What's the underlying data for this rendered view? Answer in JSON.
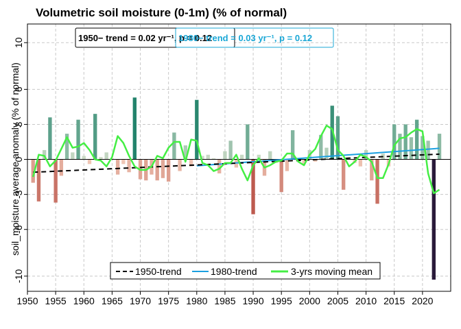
{
  "chart_data": {
    "type": "bar",
    "title": "Volumetric soil moisture (0-1m)  (% of normal)",
    "ylabel": "soil_moisture average anomaly (% of normal)",
    "xlabel": "",
    "xlim": [
      1950,
      2025
    ],
    "ylim": [
      -11.3,
      11.6
    ],
    "x_ticks": [
      1950,
      1955,
      1960,
      1965,
      1970,
      1975,
      1980,
      1985,
      1990,
      1995,
      2000,
      2005,
      2010,
      2015,
      2020
    ],
    "x_tick_labels": [
      "1950",
      "1955",
      "1960",
      "1965",
      "1970",
      "1975",
      "1980",
      "1985",
      "1990",
      "1995",
      "2000",
      "2005",
      "2010",
      "2015",
      "2020"
    ],
    "y_ticks": [
      -10,
      -6,
      -3,
      0,
      3,
      6,
      10
    ],
    "y_tick_labels": [
      "-10",
      "-6",
      "-3",
      "0",
      "3",
      "6",
      "10"
    ],
    "grid": true,
    "years": [
      1951,
      1952,
      1953,
      1954,
      1955,
      1956,
      1957,
      1958,
      1959,
      1960,
      1961,
      1962,
      1963,
      1964,
      1965,
      1966,
      1967,
      1968,
      1969,
      1970,
      1971,
      1972,
      1973,
      1974,
      1975,
      1976,
      1977,
      1978,
      1979,
      1980,
      1981,
      1982,
      1983,
      1984,
      1985,
      1986,
      1987,
      1988,
      1989,
      1990,
      1991,
      1992,
      1993,
      1994,
      1995,
      1996,
      1997,
      1998,
      1999,
      2000,
      2001,
      2002,
      2003,
      2004,
      2005,
      2006,
      2007,
      2008,
      2009,
      2010,
      2011,
      2012,
      2013,
      2014,
      2015,
      2016,
      2017,
      2018,
      2019,
      2020,
      2021,
      2022,
      2023
    ],
    "values": [
      -2.0,
      -3.6,
      0.8,
      3.6,
      -3.7,
      -1.4,
      2.2,
      0.6,
      3.4,
      0.3,
      -0.4,
      3.9,
      0.2,
      0.6,
      0.1,
      -1.3,
      -0.4,
      -1.1,
      5.3,
      -1.7,
      -1.8,
      -1.3,
      -1.8,
      -1.6,
      -1.9,
      2.3,
      -1.0,
      1.2,
      -0.6,
      5.1,
      0.3,
      0.4,
      0.1,
      -1.2,
      0.7,
      1.6,
      -0.7,
      0.4,
      3.0,
      -4.7,
      0.4,
      -1.4,
      0.7,
      -0.3,
      -2.8,
      -1.0,
      2.5,
      -0.2,
      -0.4,
      0.8,
      -0.2,
      2.1,
      1.0,
      4.6,
      3.7,
      -2.6,
      0.2,
      -0.3,
      -0.6,
      0.8,
      -1.8,
      -3.8,
      0.5,
      -0.6,
      3.0,
      2.2,
      3.0,
      1.9,
      3.4,
      2.0,
      1.6,
      -10.3,
      2.2
    ],
    "moving_mean": [
      -1.5,
      0.4,
      0.3,
      -0.6,
      -0.1,
      0.9,
      1.9,
      1.0,
      1.1,
      1.4,
      0.8,
      0.0,
      -0.1,
      -0.6,
      0.2,
      2.0,
      1.4,
      0.3,
      -0.6,
      -0.9,
      -0.9,
      -0.6,
      0.3,
      0.1,
      1.0,
      1.5,
      1.5,
      -0.2,
      1.7,
      1.6,
      -0.3,
      -0.5,
      -1.0,
      -0.8,
      -0.3,
      -0.3,
      0.4,
      -0.8,
      -1.8,
      -0.5,
      0.1,
      -0.7,
      -0.5,
      -0.2,
      -0.1,
      0.5,
      0.5,
      -0.2,
      -0.5,
      0.4,
      0.9,
      2.0,
      2.9,
      2.6,
      0.8,
      0.3,
      -0.6,
      -0.2,
      0.4,
      0.2,
      -0.2,
      -1.6,
      -1.6,
      -0.4,
      1.2,
      1.8,
      1.9,
      2.3,
      2.6,
      2.4,
      -1.2,
      -2.9,
      -2.6
    ],
    "trend_1950": {
      "start": [
        1951,
        -1.1
      ],
      "end": [
        2023,
        0.45
      ]
    },
    "trend_1980": {
      "start": [
        1980,
        -0.55
      ],
      "end": [
        2023,
        0.95
      ]
    },
    "annotation_1950": "1950−  trend = 0.02 yr⁻¹, p = 0.12",
    "annotation_1980": "1980−  trend = 0.03 yr⁻¹, p = 0.12",
    "legend": {
      "placement": "bottom-center",
      "entries": [
        "1950-trend",
        "1980-trend",
        "3-yrs moving mean"
      ]
    },
    "colors": {
      "trend_1950": "#000000",
      "trend_1980": "#1a9fe0",
      "moving_mean": "#44ee44",
      "annotation_1980": "#1aa7d6"
    }
  }
}
